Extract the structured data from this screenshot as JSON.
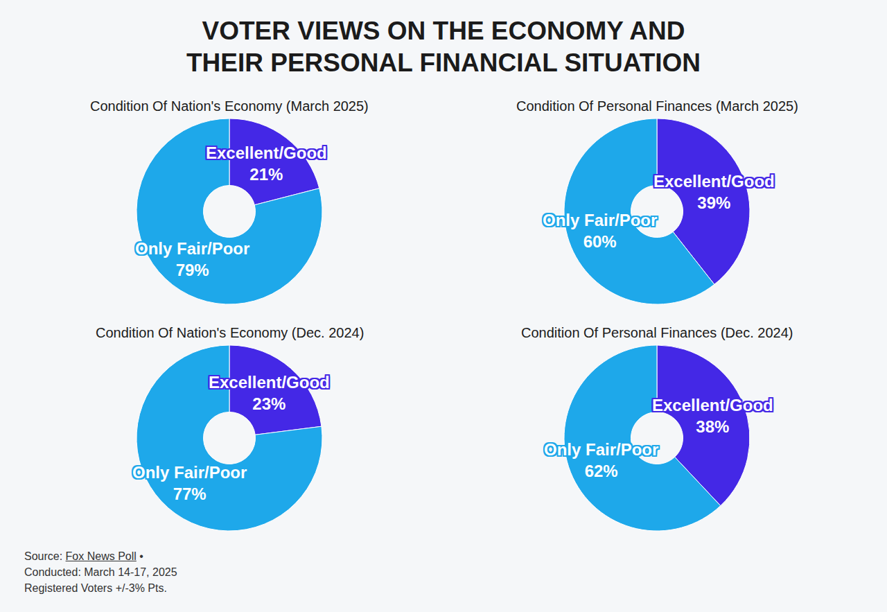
{
  "title": "VOTER VIEWS ON THE ECONOMY AND THEIR PERSONAL FINANCIAL SITUATION",
  "chart_data": [
    {
      "type": "pie",
      "title": "Condition Of Nation's Economy (March 2025)",
      "categories": [
        "Excellent/Good",
        "Only Fair/Poor"
      ],
      "values": [
        21,
        79
      ],
      "value_labels": [
        "21%",
        "79%"
      ],
      "colors": [
        "#4428e6",
        "#1ea8ea"
      ],
      "data_labels": true
    },
    {
      "type": "pie",
      "title": "Condition Of Personal Finances (March 2025)",
      "categories": [
        "Excellent/Good",
        "Only Fair/Poor"
      ],
      "values": [
        39,
        60
      ],
      "value_labels": [
        "39%",
        "60%"
      ],
      "colors": [
        "#4428e6",
        "#1ea8ea"
      ],
      "data_labels": true
    },
    {
      "type": "pie",
      "title": "Condition Of Nation's Economy (Dec. 2024)",
      "categories": [
        "Excellent/Good",
        "Only Fair/Poor"
      ],
      "values": [
        23,
        77
      ],
      "value_labels": [
        "23%",
        "77%"
      ],
      "colors": [
        "#4428e6",
        "#1ea8ea"
      ],
      "data_labels": true
    },
    {
      "type": "pie",
      "title": "Condition Of Personal Finances (Dec. 2024)",
      "categories": [
        "Excellent/Good",
        "Only Fair/Poor"
      ],
      "values": [
        38,
        62
      ],
      "value_labels": [
        "38%",
        "62%"
      ],
      "colors": [
        "#4428e6",
        "#1ea8ea"
      ],
      "data_labels": true
    }
  ],
  "footer": {
    "source_label": "Source:",
    "source": "Fox News Poll",
    "separator": "•",
    "lines": [
      "Conducted: March 14-17, 2025",
      "Registered Voters +/-3% Pts."
    ]
  }
}
